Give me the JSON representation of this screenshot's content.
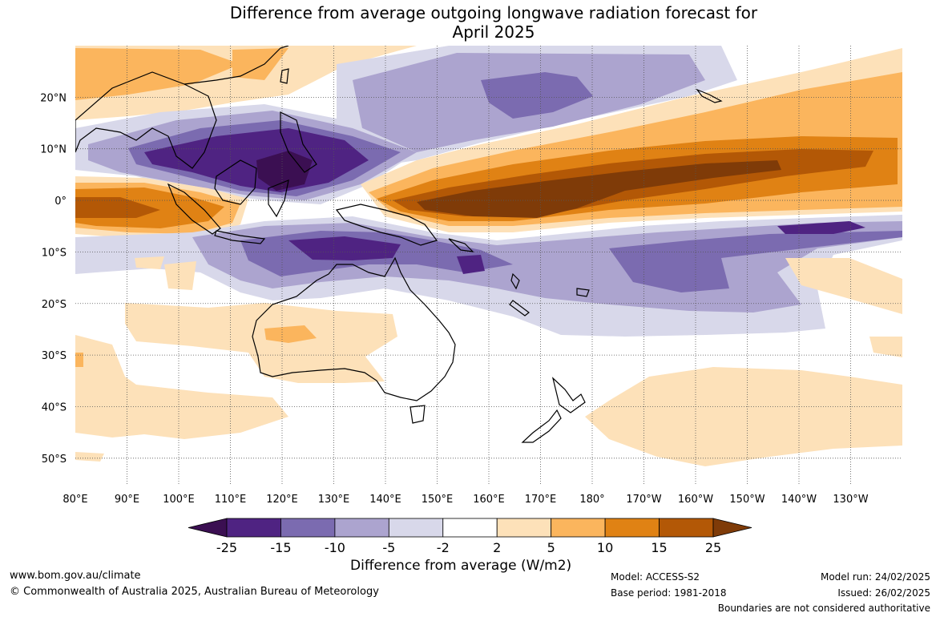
{
  "title": {
    "line1": "Difference from average outgoing longwave radiation forecast for",
    "line2": "April 2025"
  },
  "map": {
    "lon_range": [
      80,
      240
    ],
    "lat_range": [
      -55,
      30
    ],
    "lon_labels": [
      "80°E",
      "90°E",
      "100°E",
      "110°E",
      "120°E",
      "130°E",
      "140°E",
      "150°E",
      "160°E",
      "170°E",
      "180°",
      "170°W",
      "160°W",
      "150°W",
      "140°W",
      "130°W"
    ],
    "lat_labels": [
      "20°N",
      "10°N",
      "0°",
      "10°S",
      "20°S",
      "30°S",
      "40°S",
      "50°S"
    ],
    "lat_values": [
      20,
      10,
      0,
      -10,
      -20,
      -30,
      -40,
      -50
    ]
  },
  "colorbar": {
    "ticks": [
      "-25",
      "-15",
      "-10",
      "-5",
      "-2",
      "2",
      "5",
      "10",
      "15",
      "25"
    ],
    "colors": [
      "#3b0f52",
      "#4f2382",
      "#7b6bb0",
      "#aca4cf",
      "#d8d8ea",
      "#ffffff",
      "#fde1b9",
      "#fbb55d",
      "#e08214",
      "#b35806",
      "#7f3b08"
    ],
    "label": "Difference from average (W/m2)"
  },
  "footer": {
    "website": "www.bom.gov.au/climate",
    "copyright": "© Commonwealth of Australia 2025, Australian Bureau of Meteorology",
    "model": "Model: ACCESS-S2",
    "base_period": "Base period: 1981-2018",
    "model_run": "Model run: 24/02/2025",
    "issued": "Issued: 26/02/2025",
    "disclaimer": "Boundaries are not considered authoritative"
  }
}
